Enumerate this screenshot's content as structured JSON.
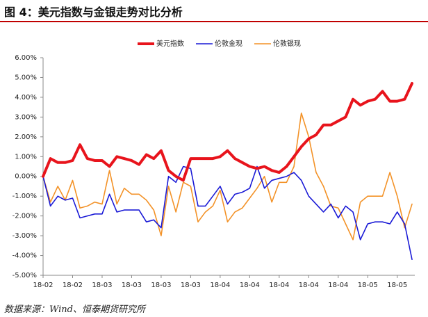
{
  "chart_data": {
    "type": "line",
    "title": "图 4：美元指数与金银走势对比分析",
    "source": "数据来源：Wind、恒泰期货研究所",
    "categories": [
      "18-02",
      null,
      null,
      null,
      "18-02",
      null,
      null,
      null,
      "18-03",
      null,
      null,
      null,
      "18-03",
      null,
      null,
      null,
      "18-03",
      null,
      null,
      null,
      "18-03",
      null,
      null,
      null,
      "18-04",
      null,
      null,
      null,
      "18-04",
      null,
      null,
      null,
      "18-04",
      null,
      null,
      null,
      "18-04",
      null,
      null,
      null,
      "18-04",
      null,
      null,
      null,
      "18-05",
      null,
      null,
      null,
      "18-05",
      null,
      null
    ],
    "series": [
      {
        "name": "美元指数",
        "color": "#e8141c",
        "values": [
          0,
          0.9,
          0.7,
          0.7,
          0.8,
          1.6,
          0.9,
          0.8,
          0.8,
          0.5,
          1.0,
          0.9,
          0.8,
          0.6,
          1.1,
          0.9,
          1.3,
          0.3,
          0,
          -0.2,
          0.9,
          0.9,
          0.9,
          0.9,
          1.0,
          1.3,
          0.9,
          0.7,
          0.5,
          0.4,
          0.5,
          0.3,
          0.2,
          0.5,
          1.0,
          1.5,
          1.9,
          2.1,
          2.6,
          2.6,
          2.8,
          3.0,
          3.9,
          3.6,
          3.8,
          3.9,
          4.3,
          3.8,
          3.8,
          3.9,
          4.7
        ]
      },
      {
        "name": "伦敦金现",
        "color": "#1a1ad6",
        "values": [
          0,
          -1.5,
          -1.0,
          -1.2,
          -1.1,
          -2.1,
          -2.0,
          -1.9,
          -1.9,
          -0.9,
          -1.8,
          -1.7,
          -1.7,
          -1.7,
          -2.3,
          -2.2,
          -2.6,
          0,
          -0.3,
          0.5,
          0.4,
          -1.5,
          -1.5,
          -1.0,
          -0.5,
          -1.4,
          -0.9,
          -0.8,
          -0.6,
          0.5,
          -0.6,
          -0.2,
          -0.1,
          0,
          0.2,
          -0.2,
          -1.0,
          -1.4,
          -1.8,
          -1.4,
          -2.1,
          -1.5,
          -1.8,
          -3.2,
          -2.4,
          -2.3,
          -2.3,
          -2.4,
          -1.8,
          -2.4,
          -4.2
        ]
      },
      {
        "name": "伦敦银现",
        "color": "#f39227",
        "values": [
          0,
          -1.3,
          -0.5,
          -1.2,
          -0.2,
          -1.6,
          -1.5,
          -1.3,
          -1.4,
          0.3,
          -1.4,
          -0.6,
          -0.9,
          -0.9,
          -1.2,
          -1.7,
          -3.0,
          -0.5,
          -1.8,
          -0.3,
          -0.5,
          -2.3,
          -1.8,
          -1.5,
          -0.7,
          -2.3,
          -1.8,
          -1.6,
          -1.1,
          -0.6,
          0,
          -1.3,
          -0.3,
          -0.3,
          0.5,
          3.2,
          2.0,
          0.2,
          -0.5,
          -1.5,
          -1.6,
          -2.4,
          -3.2,
          -1.3,
          -1.0,
          -1.0,
          -1.0,
          0.2,
          -1.0,
          -2.6,
          -1.4
        ]
      }
    ],
    "ylim": [
      -5,
      6
    ],
    "yticks": [
      {
        "value": -5,
        "label": "-5.00%"
      },
      {
        "value": -4,
        "label": "-4.00%"
      },
      {
        "value": -3,
        "label": "-3.00%"
      },
      {
        "value": -2,
        "label": "-2.00%"
      },
      {
        "value": -1,
        "label": "-1.00%"
      },
      {
        "value": 0,
        "label": "0.00%"
      },
      {
        "value": 1,
        "label": "1.00%"
      },
      {
        "value": 2,
        "label": "2.00%"
      },
      {
        "value": 3,
        "label": "3.00%"
      },
      {
        "value": 4,
        "label": "4.00%"
      },
      {
        "value": 5,
        "label": "5.00%"
      },
      {
        "value": 6,
        "label": "6.00%"
      }
    ],
    "legend": "top"
  }
}
